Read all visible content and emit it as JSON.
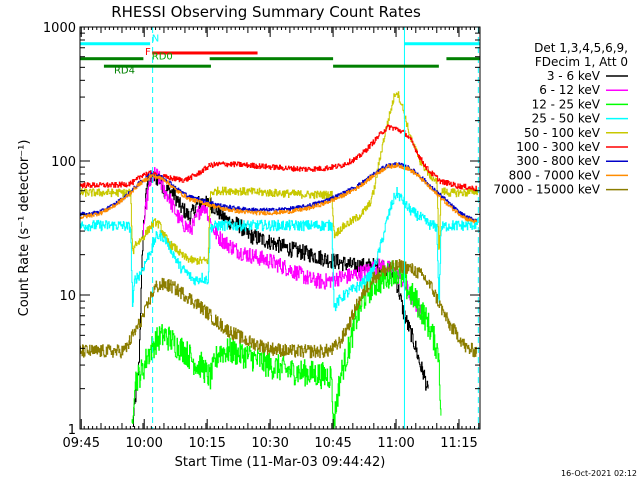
{
  "chart_data": {
    "type": "line",
    "title": "RHESSI Observing Summary Count Rates",
    "xlabel": "Start Time (11-Mar-03 09:44:42)",
    "ylabel": "Count Rate (s⁻¹ detector⁻¹)",
    "y_scale": "log",
    "ylim": [
      1,
      1000
    ],
    "xlim_minutes": [
      0,
      95.3
    ],
    "x_ticks": [
      {
        "label": "09:45",
        "minute": 0.3
      },
      {
        "label": "10:00",
        "minute": 15.3
      },
      {
        "label": "10:15",
        "minute": 30.3
      },
      {
        "label": "10:30",
        "minute": 45.3
      },
      {
        "label": "10:45",
        "minute": 60.3
      },
      {
        "label": "11:00",
        "minute": 75.3
      },
      {
        "label": "11:15",
        "minute": 90.3
      }
    ],
    "y_ticks": [
      {
        "label": "1",
        "value": 1
      },
      {
        "label": "10",
        "value": 10
      },
      {
        "label": "100",
        "value": 100
      },
      {
        "label": "1000",
        "value": 1000
      }
    ],
    "legend_header": [
      "Det 1,3,4,5,6,9,",
      "FDecim 1, Att 0"
    ],
    "legend_position": "right",
    "timestamp": "16-Oct-2021 02:12",
    "flags": {
      "labels": [
        {
          "text": "N",
          "color": "#00ffff",
          "x": 17.1,
          "y": 780
        },
        {
          "text": "F",
          "color": "#ff0000",
          "x": 15.5,
          "y": 620
        },
        {
          "text": "RD0",
          "color": "#00aa00",
          "x": 17.1,
          "y": 570
        },
        {
          "text": "RD4",
          "color": "#008000",
          "x": 8.1,
          "y": 450
        }
      ],
      "bars": [
        {
          "color": "#00ffff",
          "y": 750,
          "segments": [
            [
              0,
              16.7
            ],
            [
              77.3,
              95.3
            ]
          ]
        },
        {
          "color": "#ff0000",
          "y": 640,
          "segments": [
            [
              17.2,
              42.3
            ]
          ]
        },
        {
          "color": "#008000",
          "y": 580,
          "segments": [
            [
              0,
              15.1
            ],
            [
              30.9,
              60.3
            ],
            [
              87.3,
              95.3
            ]
          ]
        },
        {
          "color": "#008000",
          "y": 510,
          "segments": [
            [
              5.7,
              31.2
            ],
            [
              60.3,
              85.5
            ]
          ]
        }
      ],
      "vlines": [
        {
          "color": "#00ffff",
          "minute": 0,
          "dashed": false
        },
        {
          "color": "#00ffff",
          "minute": 17.3,
          "dashed": true
        },
        {
          "color": "#00ffff",
          "minute": 77.3,
          "dashed": false
        },
        {
          "color": "#00ffff",
          "minute": 94.9,
          "dashed": true
        }
      ]
    },
    "series": [
      {
        "name": "3 - 6 keV",
        "color": "#000000",
        "noise": 0.06,
        "x": [
          12.5,
          13.0,
          14.0,
          15.0,
          16.0,
          17.0,
          18.0,
          19.0,
          20.0,
          21.0,
          22.0,
          23.0,
          24.0,
          25.0,
          26.0,
          27.0,
          28.0,
          29.0,
          30.0,
          31.0,
          32.0,
          35.0,
          38.0,
          40.0,
          45.0,
          50.0,
          55.0,
          60.0,
          62.0,
          65.0,
          68.0,
          70.0,
          72.0,
          74.0,
          75.0,
          76.0,
          77.0,
          78.0,
          79.0,
          80.0,
          81.0,
          82.0,
          83.0
        ],
        "y": [
          1.0,
          1.5,
          3.0,
          30,
          70,
          75,
          75,
          72,
          62,
          60,
          58,
          52,
          45,
          42,
          38,
          42,
          48,
          50,
          48,
          48,
          45,
          36,
          33,
          28,
          25,
          22,
          20,
          18,
          17.5,
          16.5,
          16.5,
          16.5,
          16.5,
          15.0,
          13.5,
          10.5,
          7.5,
          6.0,
          5.0,
          4.0,
          3.0,
          2.5,
          1.8
        ]
      },
      {
        "name": "6 - 12 keV",
        "color": "#ff00ff",
        "noise": 0.06,
        "x": [
          15.0,
          16.0,
          17.0,
          18.0,
          19.0,
          20.0,
          21.0,
          22.0,
          23.0,
          24.0,
          25.0,
          26.0,
          27.0,
          28.0,
          29.0,
          30.0,
          31.0,
          32.0,
          33.0,
          35.0,
          38.0,
          40.0,
          45.0,
          50.0,
          55.0,
          58.0,
          60.0,
          62.0,
          65.0,
          68.0,
          70.0,
          72.0,
          74.0,
          75.0,
          76.0,
          77.0,
          78.0,
          79.0,
          80.0,
          81.0,
          82.0
        ],
        "y": [
          30,
          55,
          75,
          80,
          72,
          60,
          55,
          46,
          40,
          35,
          33,
          31,
          33,
          40,
          46,
          45,
          35,
          30,
          27,
          24,
          21,
          20,
          18,
          15.5,
          13,
          12.5,
          13,
          13.5,
          14,
          15,
          16,
          16.5,
          15.5,
          14.5,
          13.5,
          12.5,
          11.0,
          9.5,
          8.5,
          7.5,
          6.5
        ]
      },
      {
        "name": "12 - 25 keV",
        "color": "#00ff00",
        "noise": 0.1,
        "x": [
          12.3,
          13.0,
          14.0,
          15.0,
          16.0,
          17.0,
          18.0,
          19.0,
          20.0,
          21.0,
          22.0,
          23.0,
          24.0,
          25.0,
          26.0,
          27.0,
          28.0,
          29.0,
          30.0,
          31.0,
          33.0,
          36.0,
          40.0,
          45.0,
          50.0,
          55.0,
          58.0,
          60.0,
          60.2,
          62.0,
          64.0,
          66.0,
          68.0,
          70.0,
          72.0,
          74.0,
          75.0,
          76.0,
          77.0,
          78.0,
          80.0,
          82.0,
          84.0,
          85.5,
          86.0
        ],
        "y": [
          1.0,
          2.3,
          2.5,
          2.8,
          3.5,
          4.0,
          4.5,
          4.8,
          5.0,
          4.8,
          4.5,
          4.2,
          4.0,
          3.8,
          3.5,
          3.2,
          3.0,
          3.0,
          2.6,
          2.4,
          3.8,
          3.8,
          3.5,
          3.0,
          2.7,
          2.6,
          2.5,
          2.5,
          1.0,
          2.5,
          4.0,
          7.0,
          10.0,
          12.0,
          13.0,
          14.5,
          15.5,
          14.0,
          12.5,
          11.0,
          9.0,
          7.0,
          5.0,
          3.5,
          1.0
        ]
      },
      {
        "name": "25 - 50 keV",
        "color": "#00ffff",
        "noise": 0.04,
        "x": [
          0.0,
          5.0,
          10.0,
          12.0,
          12.5,
          13.0,
          14.0,
          15.0,
          16.0,
          17.0,
          18.0,
          19.0,
          20.0,
          21.0,
          22.0,
          23.0,
          24.0,
          25.0,
          26.0,
          27.0,
          28.0,
          29.0,
          30.0,
          30.5,
          31.0,
          33.0,
          36.0,
          40.0,
          45.0,
          50.0,
          55.0,
          58.0,
          60.0,
          60.5,
          61.5,
          63.0,
          65.0,
          67.0,
          69.0,
          70.0,
          71.0,
          72.0,
          73.0,
          74.0,
          75.0,
          75.5,
          76.0,
          77.0,
          78.0,
          79.0,
          80.0,
          81.0,
          82.0,
          83.0,
          84.0,
          85.0,
          85.5,
          86.0,
          88.0,
          90.0,
          92.0,
          94.9
        ],
        "y": [
          33,
          33,
          33,
          32,
          8.0,
          13,
          14,
          16,
          19,
          22,
          27,
          28,
          27,
          24,
          21,
          18,
          16,
          15,
          14,
          13,
          13,
          13.5,
          13,
          13,
          32,
          33,
          33,
          33,
          33,
          33,
          33,
          33,
          33,
          8.0,
          9,
          10,
          11,
          12,
          14,
          16,
          20,
          26,
          35,
          45,
          55,
          58,
          55,
          50,
          45,
          42,
          40,
          38,
          36,
          34,
          33,
          32,
          8.0,
          32,
          33,
          33,
          33,
          34
        ]
      },
      {
        "name": "50 - 100 keV",
        "color": "#c8c800",
        "noise": 0.03,
        "x": [
          0.0,
          5.0,
          10.0,
          12.0,
          12.5,
          13.0,
          14.0,
          15.0,
          16.0,
          17.0,
          18.0,
          19.0,
          20.0,
          21.0,
          22.0,
          23.0,
          24.0,
          25.0,
          26.0,
          27.0,
          28.0,
          29.0,
          30.0,
          30.5,
          31.0,
          33.0,
          36.0,
          40.0,
          45.0,
          50.0,
          55.0,
          58.0,
          60.0,
          60.5,
          61.5,
          63.0,
          65.0,
          67.0,
          69.0,
          70.0,
          71.0,
          72.0,
          73.0,
          74.0,
          75.0,
          75.5,
          76.0,
          77.0,
          78.0,
          79.0,
          80.0,
          81.0,
          82.0,
          83.0,
          84.0,
          85.0,
          85.5,
          86.0,
          88.0,
          90.0,
          92.0,
          94.9
        ],
        "y": [
          58,
          58,
          58,
          58,
          20,
          24,
          25,
          27,
          30,
          33,
          35,
          33,
          28,
          25,
          23,
          22,
          20,
          19,
          18.5,
          18,
          18,
          18,
          18,
          18,
          58,
          60,
          60,
          59,
          58,
          57,
          56,
          56,
          56,
          28,
          30,
          33,
          36,
          40,
          48,
          60,
          90,
          130,
          180,
          240,
          320,
          330,
          300,
          240,
          180,
          140,
          120,
          100,
          90,
          80,
          75,
          70,
          20,
          60,
          58,
          58,
          58,
          60
        ]
      },
      {
        "name": "100 - 300 keV",
        "color": "#ff0000",
        "noise": 0.02,
        "x": [
          0.0,
          4.0,
          8.0,
          11.0,
          13.0,
          15.0,
          17.0,
          18.0,
          20.0,
          22.0,
          25.0,
          28.0,
          31.0,
          34.0,
          38.0,
          42.0,
          46.0,
          50.0,
          54.0,
          58.0,
          62.0,
          66.0,
          68.0,
          70.0,
          72.0,
          73.5,
          75.0,
          76.0,
          77.5,
          79.0,
          81.0,
          83.0,
          85.0,
          86.0,
          88.0,
          90.0,
          92.0,
          94.5
        ],
        "y": [
          66,
          66,
          66,
          67,
          70,
          80,
          80,
          78,
          76,
          74,
          72,
          80,
          93,
          95,
          94,
          92,
          90,
          88,
          87,
          88,
          92,
          105,
          120,
          140,
          165,
          180,
          175,
          170,
          160,
          140,
          105,
          85,
          75,
          70,
          68,
          65,
          64,
          62
        ]
      },
      {
        "name": "300 - 800 keV",
        "color": "#0000c8",
        "noise": 0.015,
        "x": [
          0.0,
          2.0,
          5.0,
          8.0,
          11.0,
          14.0,
          17.0,
          20.0,
          23.0,
          26.0,
          30.0,
          34.0,
          38.0,
          42.0,
          46.0,
          50.0,
          54.0,
          58.0,
          62.0,
          66.0,
          70.0,
          73.0,
          75.5,
          78.0,
          80.0,
          82.0,
          84.0,
          86.0,
          88.0,
          90.0,
          92.0,
          94.5
        ],
        "y": [
          40,
          40,
          42,
          47,
          55,
          68,
          80,
          75,
          62,
          54,
          50,
          46,
          44,
          43,
          43,
          44,
          46,
          50,
          56,
          65,
          80,
          92,
          95,
          90,
          82,
          72,
          62,
          55,
          48,
          42,
          38,
          36
        ]
      },
      {
        "name": "800 - 7000 keV",
        "color": "#ff8c00",
        "noise": 0.015,
        "x": [
          0.0,
          2.0,
          5.0,
          8.0,
          11.0,
          14.0,
          17.0,
          20.0,
          23.0,
          26.0,
          30.0,
          34.0,
          38.0,
          42.0,
          46.0,
          50.0,
          54.0,
          58.0,
          62.0,
          66.0,
          70.0,
          73.0,
          75.5,
          78.0,
          80.0,
          82.0,
          84.0,
          86.0,
          88.0,
          90.0,
          92.0,
          94.5
        ],
        "y": [
          38,
          39,
          41,
          46,
          54,
          67,
          78,
          73,
          60,
          52,
          48,
          44,
          42,
          41,
          41,
          42,
          44,
          48,
          54,
          63,
          78,
          90,
          93,
          88,
          80,
          70,
          60,
          53,
          46,
          41,
          37,
          35
        ]
      },
      {
        "name": "7000 - 15000 keV",
        "color": "#8b7d00",
        "noise": 0.05,
        "x": [
          0.0,
          5.0,
          10.0,
          11.0,
          12.5,
          14.0,
          15.5,
          17.0,
          18.0,
          20.0,
          22.0,
          25.0,
          28.0,
          30.0,
          32.0,
          35.0,
          40.0,
          45.0,
          50.0,
          55.0,
          58.0,
          60.0,
          62.0,
          64.0,
          66.0,
          68.0,
          70.0,
          72.0,
          74.0,
          76.0,
          78.0,
          80.0,
          82.0,
          84.0,
          86.0,
          88.0,
          90.0,
          92.0,
          94.5
        ],
        "y": [
          3.8,
          3.8,
          3.8,
          4.0,
          5.0,
          6.0,
          7.5,
          10.0,
          11.5,
          12.0,
          11.5,
          10.0,
          8.5,
          7.5,
          6.5,
          5.5,
          4.5,
          4.0,
          3.8,
          3.8,
          3.8,
          3.9,
          4.5,
          6.0,
          8.5,
          11.0,
          13.5,
          15.0,
          16.0,
          16.5,
          16.0,
          15.0,
          13.5,
          11.0,
          8.0,
          6.0,
          5.0,
          4.0,
          3.8
        ]
      }
    ]
  }
}
